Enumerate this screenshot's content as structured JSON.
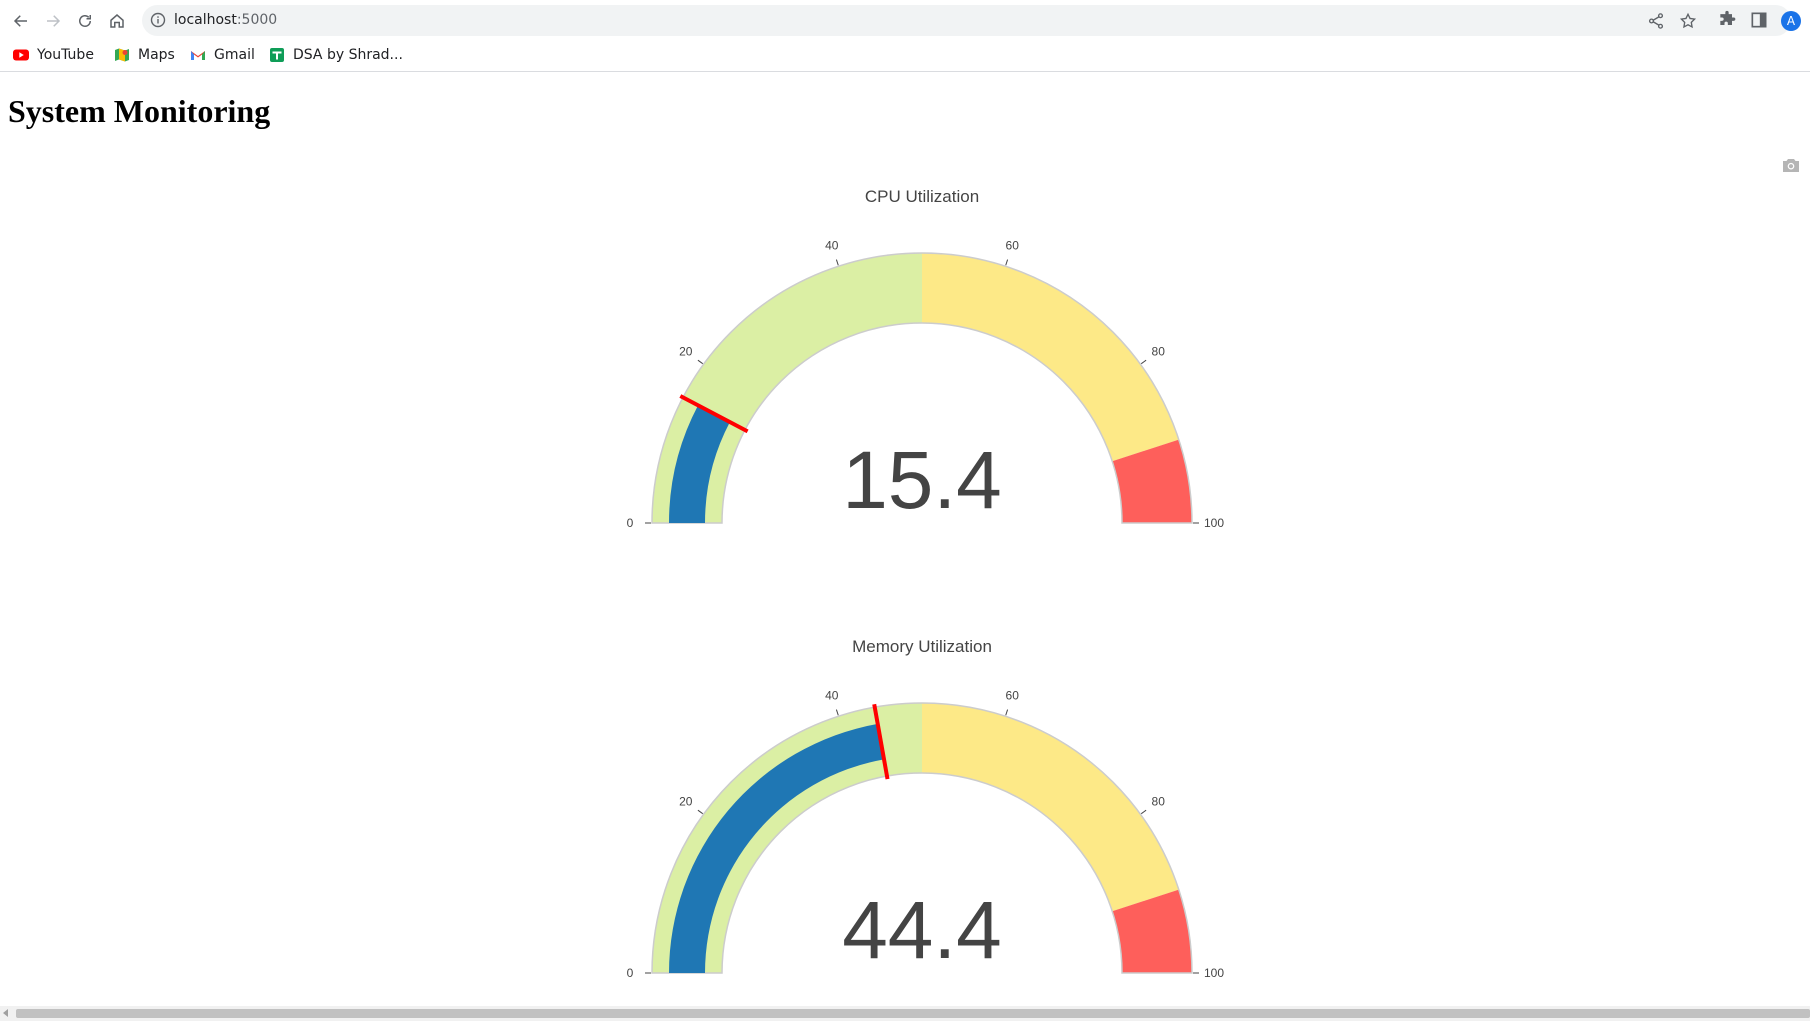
{
  "browser": {
    "url_host": "localhost",
    "url_port": ":5000",
    "avatar_letter": "A",
    "bookmarks": [
      {
        "label": "YouTube",
        "icon": "youtube-icon"
      },
      {
        "label": "Maps",
        "icon": "maps-icon"
      },
      {
        "label": "Gmail",
        "icon": "gmail-icon"
      },
      {
        "label": "DSA by Shrad...",
        "icon": "sheets-icon"
      }
    ]
  },
  "page": {
    "title": "System Monitoring"
  },
  "colors": {
    "steps": [
      "#dbefa4",
      "#fde987",
      "#fe5f5b"
    ],
    "bar": "#1f77b4",
    "threshold": "#ff0000"
  },
  "chart_data": [
    {
      "type": "gauge",
      "title": "CPU Utilization",
      "value": 15.4,
      "range": [
        0,
        100
      ],
      "ticks": [
        "0",
        "20",
        "40",
        "60",
        "80",
        "100"
      ],
      "steps": [
        {
          "range": [
            0,
            50
          ],
          "color": "#dbefa4"
        },
        {
          "range": [
            50,
            90
          ],
          "color": "#fde987"
        },
        {
          "range": [
            90,
            100
          ],
          "color": "#fe5f5b"
        }
      ],
      "bar_color": "#1f77b4",
      "threshold": 15.4
    },
    {
      "type": "gauge",
      "title": "Memory Utilization",
      "value": 44.4,
      "range": [
        0,
        100
      ],
      "ticks": [
        "0",
        "20",
        "40",
        "60",
        "80",
        "100"
      ],
      "steps": [
        {
          "range": [
            0,
            50
          ],
          "color": "#dbefa4"
        },
        {
          "range": [
            50,
            90
          ],
          "color": "#fde987"
        },
        {
          "range": [
            90,
            100
          ],
          "color": "#fe5f5b"
        }
      ],
      "bar_color": "#1f77b4",
      "threshold": 44.4
    }
  ]
}
